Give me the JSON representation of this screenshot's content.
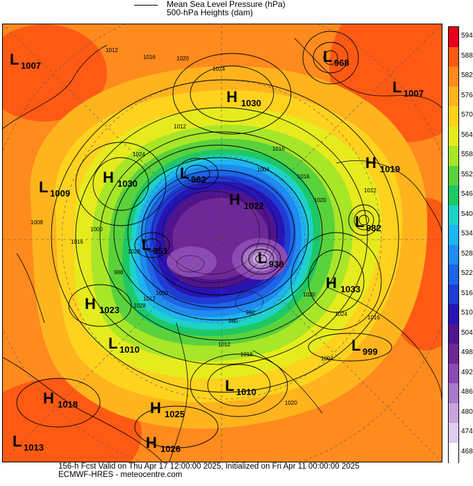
{
  "legend": {
    "pressure_label": "Mean Sea Level Pressure (hPa)",
    "height_label": "500-hPa Heights (dam)"
  },
  "colorbar": {
    "ticks": [
      "594",
      "588",
      "582",
      "576",
      "570",
      "564",
      "558",
      "552",
      "546",
      "540",
      "534",
      "528",
      "522",
      "516",
      "510",
      "504",
      "498",
      "492",
      "486",
      "480",
      "474",
      "468"
    ],
    "colors": [
      "#e8001c",
      "#ff5a14",
      "#ff8a1e",
      "#ffb41e",
      "#ffd21e",
      "#e6eb1e",
      "#a8e628",
      "#5ad23c",
      "#1ec864",
      "#1ed2c8",
      "#1eb4f0",
      "#1e8cf0",
      "#1e64e6",
      "#1e3cd2",
      "#2814b4",
      "#50148c",
      "#6e2896",
      "#8c4ab4",
      "#aa78c8",
      "#c8a5dc",
      "#e1cdee",
      "#ffffff"
    ]
  },
  "systems": [
    {
      "type": "L",
      "value": "1007"
    },
    {
      "type": "H",
      "value": "1030"
    },
    {
      "type": "L",
      "value": "968"
    },
    {
      "type": "L",
      "value": "1007"
    },
    {
      "type": "H",
      "value": "1019"
    },
    {
      "type": "H",
      "value": "1030"
    },
    {
      "type": "L",
      "value": "1009"
    },
    {
      "type": "L",
      "value": "962"
    },
    {
      "type": "H",
      "value": "1022"
    },
    {
      "type": "L",
      "value": "982"
    },
    {
      "type": "L",
      "value": "951"
    },
    {
      "type": "L",
      "value": "938"
    },
    {
      "type": "H",
      "value": "1033"
    },
    {
      "type": "H",
      "value": "1023"
    },
    {
      "type": "L",
      "value": "1010"
    },
    {
      "type": "L",
      "value": "999"
    },
    {
      "type": "L",
      "value": "1010"
    },
    {
      "type": "H",
      "value": "1018"
    },
    {
      "type": "H",
      "value": "1025"
    },
    {
      "type": "L",
      "value": "1013"
    },
    {
      "type": "H",
      "value": "1026"
    }
  ],
  "isobar_labels": [
    "1012",
    "1016",
    "1020",
    "1024",
    "1012",
    "1024",
    "1016",
    "1004",
    "1016",
    "1020",
    "1012",
    "1008",
    "1016",
    "1000",
    "1020",
    "1024",
    "1016",
    "1004",
    "1012",
    "1016",
    "1020",
    "1012",
    "992",
    "980",
    "1000",
    "988",
    "1028",
    "1028"
  ],
  "footer": {
    "line1": "156-h Fcst Valid on Thu Apr 17 12:00:00 2025, Initialized on Fri Apr 11 00:00:00 2025",
    "line2": "ECMWF-HRES - meteocentre.com"
  }
}
